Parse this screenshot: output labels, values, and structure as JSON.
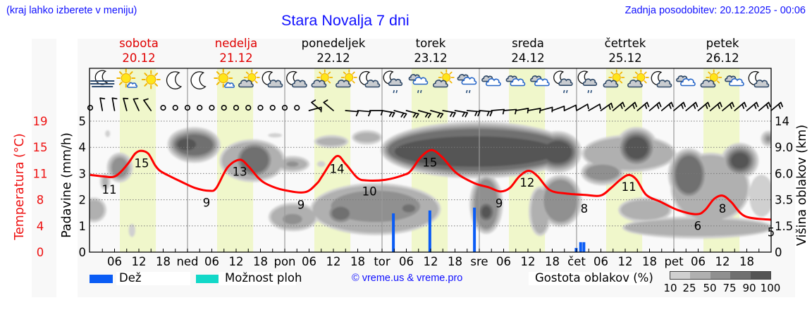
{
  "header": {
    "location_hint": "(kraj lahko izberete v meniju)",
    "title": "Stara Novalja 7 dni",
    "last_update": "Zadnja posodobitev: 20.12.2025 - 00:06"
  },
  "days": [
    {
      "name": "sobota",
      "date": "20.12",
      "weekend": true
    },
    {
      "name": "nedelja",
      "date": "21.12",
      "weekend": true
    },
    {
      "name": "ponedeljek",
      "date": "22.12",
      "weekend": false
    },
    {
      "name": "torek",
      "date": "23.12",
      "weekend": false
    },
    {
      "name": "sreda",
      "date": "24.12",
      "weekend": false
    },
    {
      "name": "četrtek",
      "date": "25.12",
      "weekend": false
    },
    {
      "name": "petek",
      "date": "26.12",
      "weekend": false
    }
  ],
  "axes": {
    "temperature_label": "Temperatura (°C)",
    "precip_label": "Padavine (mm/h)",
    "cloud_height_label": "Višina oblakov (km)"
  },
  "legend": {
    "rain_label": "Dež",
    "rain_color": "#0a5cf5",
    "shower_label": "Možnost ploh",
    "shower_color": "#12d8c8",
    "copyright": "© vreme.us & vreme.pro",
    "cloud_density_label": "Gostota oblakov (%)",
    "cloud_density_ticks": [
      "10",
      "25",
      "50",
      "75",
      "90",
      "100"
    ],
    "cloud_density_colors": [
      "#d0d0d0",
      "#b0b0b0",
      "#909090",
      "#707070",
      "#555555"
    ]
  },
  "colors": {
    "weekend": "#e00000",
    "temperature": "#ff0000",
    "temperature_axis": "#ee1111",
    "daylight": "#f0f7cb",
    "grid": "#7a7a7a",
    "day_separator": "#9a9a9a"
  },
  "chart_data": {
    "type": "line",
    "title": "Stara Novalja 7 dni",
    "x_range": [
      0,
      168
    ],
    "x_tick_labels": [
      "",
      "06",
      "12",
      "18",
      "ned",
      "06",
      "12",
      "18",
      "pon",
      "06",
      "12",
      "18",
      "tor",
      "06",
      "12",
      "18",
      "sre",
      "06",
      "12",
      "18",
      "čet",
      "06",
      "12",
      "18",
      "pet",
      "06",
      "12",
      "18"
    ],
    "daylight_hours": [
      7.3,
      16.2
    ],
    "y_left_precip": {
      "label": "Padavine (mm/h)",
      "ticks": [
        "0",
        "1",
        "2",
        "3",
        "4",
        "5"
      ],
      "range": [
        0,
        5
      ]
    },
    "y_left_temperature": {
      "label": "Temperatura (°C)",
      "ticks": [
        "0",
        "4",
        "8",
        "11",
        "15",
        "19"
      ],
      "range": [
        0,
        19
      ]
    },
    "y_right_cloud_height": {
      "label": "Višina oblakov (km)",
      "ticks": [
        "0",
        "1.5",
        "3.5",
        "6.0",
        "9.0",
        "14"
      ]
    },
    "grid": true,
    "series": [
      {
        "name": "Temperatura",
        "unit": "°C",
        "color": "#ff0000",
        "points": [
          [
            0,
            11.2
          ],
          [
            3,
            11.0
          ],
          [
            5.6,
            10.9
          ],
          [
            7.3,
            11.5
          ],
          [
            9.4,
            12.9
          ],
          [
            11.1,
            14.3
          ],
          [
            12.5,
            14.7
          ],
          [
            14.3,
            14.3
          ],
          [
            16,
            12.6
          ],
          [
            17.2,
            11.8
          ],
          [
            19,
            11.2
          ],
          [
            22.5,
            10.2
          ],
          [
            25.9,
            9.3
          ],
          [
            29.4,
            8.9
          ],
          [
            31.1,
            9.3
          ],
          [
            33.9,
            12.3
          ],
          [
            36.9,
            13.4
          ],
          [
            39.1,
            12.4
          ],
          [
            41.6,
            10.7
          ],
          [
            43.8,
            9.8
          ],
          [
            47.8,
            9.0
          ],
          [
            53,
            8.7
          ],
          [
            56,
            10.0
          ],
          [
            57.2,
            11.0
          ],
          [
            60.7,
            13.9
          ],
          [
            63,
            12.8
          ],
          [
            65.9,
            10.8
          ],
          [
            68.2,
            10.4
          ],
          [
            72.9,
            10.5
          ],
          [
            77.4,
            11.2
          ],
          [
            79.1,
            11.8
          ],
          [
            81.6,
            13.8
          ],
          [
            84.2,
            14.8
          ],
          [
            86.8,
            13.8
          ],
          [
            90.3,
            11.5
          ],
          [
            94.8,
            10.0
          ],
          [
            98.3,
            9.4
          ],
          [
            101.2,
            8.8
          ],
          [
            103.5,
            9.3
          ],
          [
            105.9,
            11.0
          ],
          [
            108.2,
            11.8
          ],
          [
            110.4,
            11.0
          ],
          [
            113.4,
            9.0
          ],
          [
            117.4,
            8.5
          ],
          [
            122.1,
            8.3
          ],
          [
            125.9,
            8.2
          ],
          [
            128.5,
            9.3
          ],
          [
            130.8,
            10.5
          ],
          [
            132.9,
            11.2
          ],
          [
            134.8,
            10.5
          ],
          [
            137.2,
            8.3
          ],
          [
            140.7,
            7.3
          ],
          [
            145,
            6.1
          ],
          [
            149.6,
            5.5
          ],
          [
            151.7,
            6.1
          ],
          [
            153.9,
            7.7
          ],
          [
            156,
            8.2
          ],
          [
            158.1,
            7.3
          ],
          [
            161.6,
            5.2
          ],
          [
            168,
            4.7
          ]
        ]
      },
      {
        "name": "Dež",
        "unit": "mm/h",
        "color": "#0a5cf5",
        "bars": [
          [
            74.8,
            1.48
          ],
          [
            83.8,
            1.59
          ],
          [
            94.8,
            1.7
          ],
          [
            119.9,
            0.16
          ],
          [
            121.0,
            0.38
          ],
          [
            121.8,
            0.38
          ]
        ]
      }
    ],
    "temperature_labels": [
      [
        4.7,
        8.5,
        "11"
      ],
      [
        12.7,
        12.3,
        "15"
      ],
      [
        28.7,
        6.6,
        "9"
      ],
      [
        36.9,
        11.1,
        "13"
      ],
      [
        52.0,
        6.3,
        "9"
      ],
      [
        60.9,
        11.5,
        "14"
      ],
      [
        68.9,
        8.2,
        "10"
      ],
      [
        83.8,
        12.4,
        "15"
      ],
      [
        100.9,
        6.5,
        "9"
      ],
      [
        107.8,
        9.5,
        "12"
      ],
      [
        121.9,
        5.7,
        "8"
      ],
      [
        132.9,
        8.9,
        "11"
      ],
      [
        149.9,
        3.2,
        "6"
      ],
      [
        156.0,
        5.7,
        "8"
      ],
      [
        168.0,
        2.3,
        "5"
      ]
    ],
    "weather_icons": [
      [
        3,
        "moon-fog"
      ],
      [
        9,
        "sun-cloud"
      ],
      [
        15,
        "sun"
      ],
      [
        21,
        "moon"
      ],
      [
        27,
        "moon"
      ],
      [
        33,
        "sun-cloud"
      ],
      [
        39,
        "sun-cloud-gray"
      ],
      [
        45,
        "moon-cloud"
      ],
      [
        51,
        "moon-cloud"
      ],
      [
        57,
        "sun-cloud-gray"
      ],
      [
        63,
        "sun-cloud-gray"
      ],
      [
        69,
        "moon-cloud"
      ],
      [
        75,
        "moon-cloud-rain"
      ],
      [
        81,
        "cloud-rain"
      ],
      [
        87,
        "sun-cloud-gray"
      ],
      [
        93,
        "cloud-rain"
      ],
      [
        99,
        "cloud"
      ],
      [
        105,
        "cloud"
      ],
      [
        111,
        "cloud"
      ],
      [
        117,
        "moon-cloud-rain"
      ],
      [
        123,
        "moon-cloud-rain"
      ],
      [
        129,
        "sun-cloud-gray"
      ],
      [
        135,
        "sun-cloud-gray"
      ],
      [
        141,
        "moon-cloud"
      ],
      [
        147,
        "cloud"
      ],
      [
        153,
        "sun-cloud-gray"
      ],
      [
        159,
        "cloud"
      ],
      [
        165,
        "moon-cloud"
      ]
    ],
    "wind": [
      [
        0,
        null,
        0
      ],
      [
        3,
        350,
        1
      ],
      [
        6,
        350,
        1
      ],
      [
        9,
        345,
        1
      ],
      [
        12,
        335,
        1
      ],
      [
        15,
        325,
        1
      ],
      [
        18,
        null,
        0
      ],
      [
        21,
        null,
        0
      ],
      [
        24,
        null,
        0
      ],
      [
        27,
        null,
        0
      ],
      [
        30,
        null,
        0
      ],
      [
        33,
        null,
        0
      ],
      [
        36,
        null,
        0
      ],
      [
        39,
        null,
        0
      ],
      [
        42,
        null,
        0
      ],
      [
        45,
        null,
        0
      ],
      [
        48,
        null,
        0
      ],
      [
        51,
        null,
        0
      ],
      [
        54,
        75,
        1
      ],
      [
        57,
        310,
        1
      ],
      [
        60,
        310,
        1
      ],
      [
        63,
        95,
        1
      ],
      [
        66,
        95,
        1
      ],
      [
        69,
        90,
        1
      ],
      [
        72,
        100,
        2
      ],
      [
        75,
        105,
        2
      ],
      [
        78,
        105,
        2
      ],
      [
        81,
        105,
        2
      ],
      [
        84,
        105,
        2
      ],
      [
        87,
        100,
        2
      ],
      [
        90,
        100,
        2
      ],
      [
        93,
        95,
        2
      ],
      [
        96,
        95,
        2
      ],
      [
        99,
        85,
        1
      ],
      [
        102,
        85,
        1
      ],
      [
        105,
        80,
        1
      ],
      [
        108,
        80,
        1
      ],
      [
        111,
        75,
        1
      ],
      [
        114,
        70,
        1
      ],
      [
        117,
        65,
        1
      ],
      [
        120,
        60,
        1
      ],
      [
        123,
        60,
        1
      ],
      [
        126,
        55,
        2
      ],
      [
        129,
        50,
        2
      ],
      [
        132,
        50,
        2
      ],
      [
        135,
        50,
        2
      ],
      [
        138,
        50,
        2
      ],
      [
        141,
        50,
        2
      ],
      [
        144,
        50,
        2
      ],
      [
        147,
        50,
        2
      ],
      [
        150,
        50,
        2
      ],
      [
        153,
        50,
        2
      ],
      [
        156,
        50,
        2
      ],
      [
        159,
        50,
        2
      ],
      [
        162,
        50,
        2
      ],
      [
        165,
        50,
        2
      ],
      [
        168,
        50,
        2
      ]
    ],
    "cloud_density": [
      [
        25.7,
        4.09,
        4.6,
        0.4,
        80
      ],
      [
        23.8,
        4.11,
        2.3,
        0.22,
        95
      ],
      [
        4.3,
        4.52,
        0.6,
        0.13,
        20
      ],
      [
        7.3,
        3.23,
        2.0,
        0.38,
        60
      ],
      [
        3.7,
        2.69,
        0.7,
        0.22,
        40
      ],
      [
        0.9,
        1.61,
        2.5,
        0.38,
        40
      ],
      [
        10.3,
        0.83,
        0.8,
        0.25,
        20
      ],
      [
        40.0,
        3.49,
        7.5,
        0.72,
        40
      ],
      [
        40.5,
        3.52,
        3.5,
        0.5,
        80
      ],
      [
        45.6,
        4.46,
        1.7,
        0.08,
        20
      ],
      [
        49.9,
        3.36,
        3.6,
        0.22,
        40
      ],
      [
        49.9,
        3.36,
        1.5,
        0.1,
        60
      ],
      [
        50.1,
        1.34,
        5.5,
        0.45,
        40
      ],
      [
        49.9,
        1.26,
        2.4,
        0.2,
        60
      ],
      [
        59.5,
        4.22,
        3.6,
        0.15,
        40
      ],
      [
        68.3,
        4.38,
        3.1,
        0.18,
        40
      ],
      [
        57.0,
        3.36,
        1.0,
        0.11,
        20
      ],
      [
        95.5,
        3.9,
        22,
        0.8,
        80
      ],
      [
        95.1,
        3.84,
        20,
        0.58,
        95
      ],
      [
        70.4,
        1.64,
        15.5,
        0.9,
        40
      ],
      [
        70.4,
        1.75,
        11,
        0.6,
        60
      ],
      [
        61.8,
        1.48,
        2.2,
        0.25,
        80
      ],
      [
        70.8,
        1.64,
        2.0,
        0.25,
        60
      ],
      [
        78.6,
        1.67,
        1.6,
        0.15,
        80
      ],
      [
        97.7,
        1.83,
        2.9,
        0.95,
        60
      ],
      [
        97.7,
        1.53,
        1.1,
        0.22,
        95
      ],
      [
        111.0,
        1.56,
        2.2,
        0.85,
        40
      ],
      [
        115.3,
        3.82,
        3.5,
        0.42,
        95
      ],
      [
        116.0,
        1.96,
        4.1,
        0.8,
        60
      ],
      [
        132.9,
        3.76,
        11,
        0.62,
        40
      ],
      [
        134.8,
        3.98,
        2.8,
        0.42,
        95
      ],
      [
        126.4,
        3.04,
        4.1,
        0.3,
        60
      ],
      [
        136.9,
        1.61,
        6.0,
        0.38,
        40
      ],
      [
        153.0,
        2.45,
        9.2,
        1.25,
        40
      ],
      [
        147.7,
        2.96,
        3.3,
        0.72,
        80
      ],
      [
        160.3,
        3.49,
        2.2,
        0.3,
        95
      ],
      [
        149.9,
        0.94,
        18,
        0.33,
        40
      ],
      [
        165.6,
        2.15,
        3.0,
        0.8,
        20
      ],
      [
        167.3,
        4.33,
        0.6,
        0.11,
        60
      ]
    ]
  }
}
